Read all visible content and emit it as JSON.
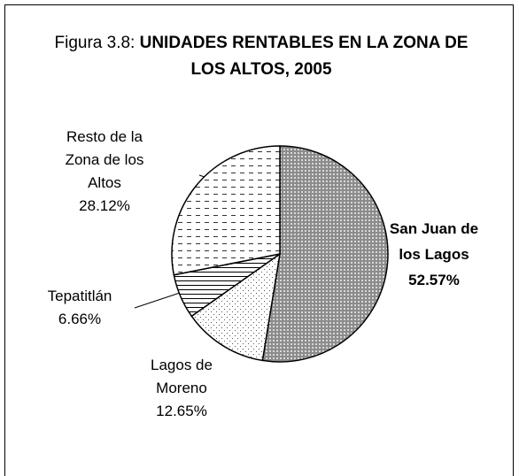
{
  "chart_data": {
    "type": "pie",
    "title": {
      "prefix": "Figura 3.8:",
      "text": "UNIDADES RENTABLES EN LA ZONA DE LOS ALTOS, 2005"
    },
    "categories": [
      "San Juan de los Lagos",
      "Lagos de Moreno",
      "Tepatitlán",
      "Resto de la Zona de los Altos"
    ],
    "values": [
      52.57,
      12.65,
      6.66,
      28.12
    ],
    "value_labels": [
      "52.57%",
      "12.65%",
      "6.66%",
      "28.12%"
    ]
  }
}
